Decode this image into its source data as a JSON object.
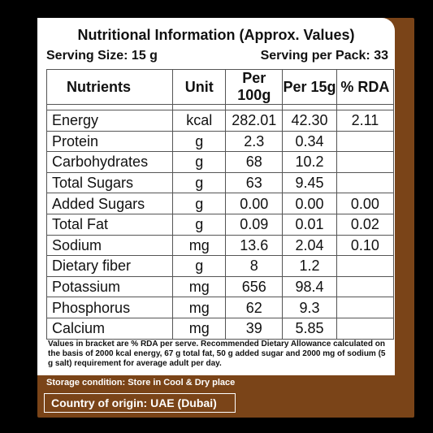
{
  "title": "Nutritional Information (Approx. Values)",
  "serving_size": "Serving Size: 15 g",
  "serving_per_pack": "Serving per Pack: 33",
  "headers": [
    "Nutrients",
    "Unit",
    "Per 100g",
    "Per 15g",
    "% RDA"
  ],
  "rows": [
    {
      "name": "Energy",
      "unit": "kcal",
      "per100": "282.01",
      "per15": "42.30",
      "rda": "2.11"
    },
    {
      "name": "Protein",
      "unit": "g",
      "per100": "2.3",
      "per15": "0.34",
      "rda": ""
    },
    {
      "name": "Carbohydrates",
      "unit": "g",
      "per100": "68",
      "per15": "10.2",
      "rda": ""
    },
    {
      "name": "Total Sugars",
      "unit": "g",
      "per100": "63",
      "per15": "9.45",
      "rda": ""
    },
    {
      "name": "Added Sugars",
      "unit": "g",
      "per100": "0.00",
      "per15": "0.00",
      "rda": "0.00"
    },
    {
      "name": "Total Fat",
      "unit": "g",
      "per100": "0.09",
      "per15": "0.01",
      "rda": "0.02"
    },
    {
      "name": "Sodium",
      "unit": "mg",
      "per100": "13.6",
      "per15": "2.04",
      "rda": "0.10"
    },
    {
      "name": "Dietary fiber",
      "unit": "g",
      "per100": "8",
      "per15": "1.2",
      "rda": ""
    },
    {
      "name": "Potassium",
      "unit": "mg",
      "per100": "656",
      "per15": "98.4",
      "rda": ""
    },
    {
      "name": "Phosphorus",
      "unit": "mg",
      "per100": "62",
      "per15": "9.3",
      "rda": ""
    },
    {
      "name": "Calcium",
      "unit": "mg",
      "per100": "39",
      "per15": "5.85",
      "rda": ""
    }
  ],
  "note": "Values in bracket are % RDA per serve. Recommended Dietary Allowance calculated on the basis of 2000 kcal energy, 67 g total fat, 50 g added sugar and 2000 mg of sodium (5 g salt) requirement for average adult per day.",
  "storage": "Storage condition: Store in Cool & Dry place",
  "origin": "Country of origin: UAE (Dubai)",
  "colors": {
    "panel": "#7a4418",
    "card": "#ffffff",
    "background": "#000000"
  }
}
